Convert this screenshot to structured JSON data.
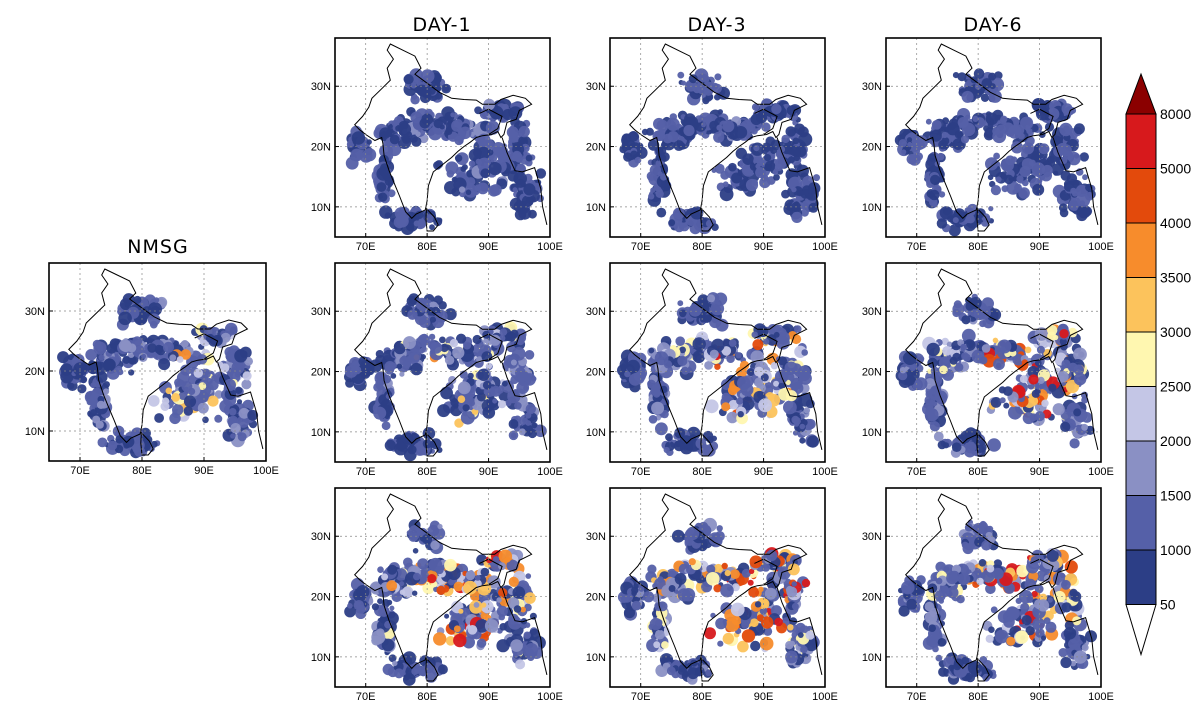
{
  "figure": {
    "column_titles": [
      "DAY-1",
      "DAY-3",
      "DAY-6"
    ],
    "reference_title": "NMSG",
    "lon_ticks": [
      "70E",
      "80E",
      "90E",
      "100E"
    ],
    "lat_ticks": [
      "30N",
      "20N",
      "10N"
    ],
    "map_extent": {
      "lon_min": 65,
      "lon_max": 100,
      "lat_min": 5,
      "lat_max": 38
    },
    "panels": [
      {
        "id": "nmsg",
        "title": "NMSG",
        "row": null,
        "column": null,
        "intensity": 0.55
      },
      {
        "id": "r1c1",
        "row": 1,
        "column": "DAY-1",
        "intensity": 0.3
      },
      {
        "id": "r1c2",
        "row": 1,
        "column": "DAY-3",
        "intensity": 0.28
      },
      {
        "id": "r1c3",
        "row": 1,
        "column": "DAY-6",
        "intensity": 0.25
      },
      {
        "id": "r2c1",
        "row": 2,
        "column": "DAY-1",
        "intensity": 0.55
      },
      {
        "id": "r2c2",
        "row": 2,
        "column": "DAY-3",
        "intensity": 0.62
      },
      {
        "id": "r2c3",
        "row": 2,
        "column": "DAY-6",
        "intensity": 0.7
      },
      {
        "id": "r3c1",
        "row": 3,
        "column": "DAY-1",
        "intensity": 0.72
      },
      {
        "id": "r3c2",
        "row": 3,
        "column": "DAY-3",
        "intensity": 0.78
      },
      {
        "id": "r3c3",
        "row": 3,
        "column": "DAY-6",
        "intensity": 0.7
      }
    ]
  },
  "colorbar": {
    "labels": [
      "50",
      "1000",
      "1500",
      "2000",
      "2500",
      "3000",
      "3500",
      "4000",
      "5000",
      "8000"
    ],
    "colors": [
      "#ffffff",
      "#2c3e86",
      "#5560a8",
      "#8a90c4",
      "#c4c6e6",
      "#fff7b0",
      "#fcc35c",
      "#f78c2c",
      "#e34a0c",
      "#d7191c",
      "#8b0000"
    ],
    "extend": "both"
  }
}
